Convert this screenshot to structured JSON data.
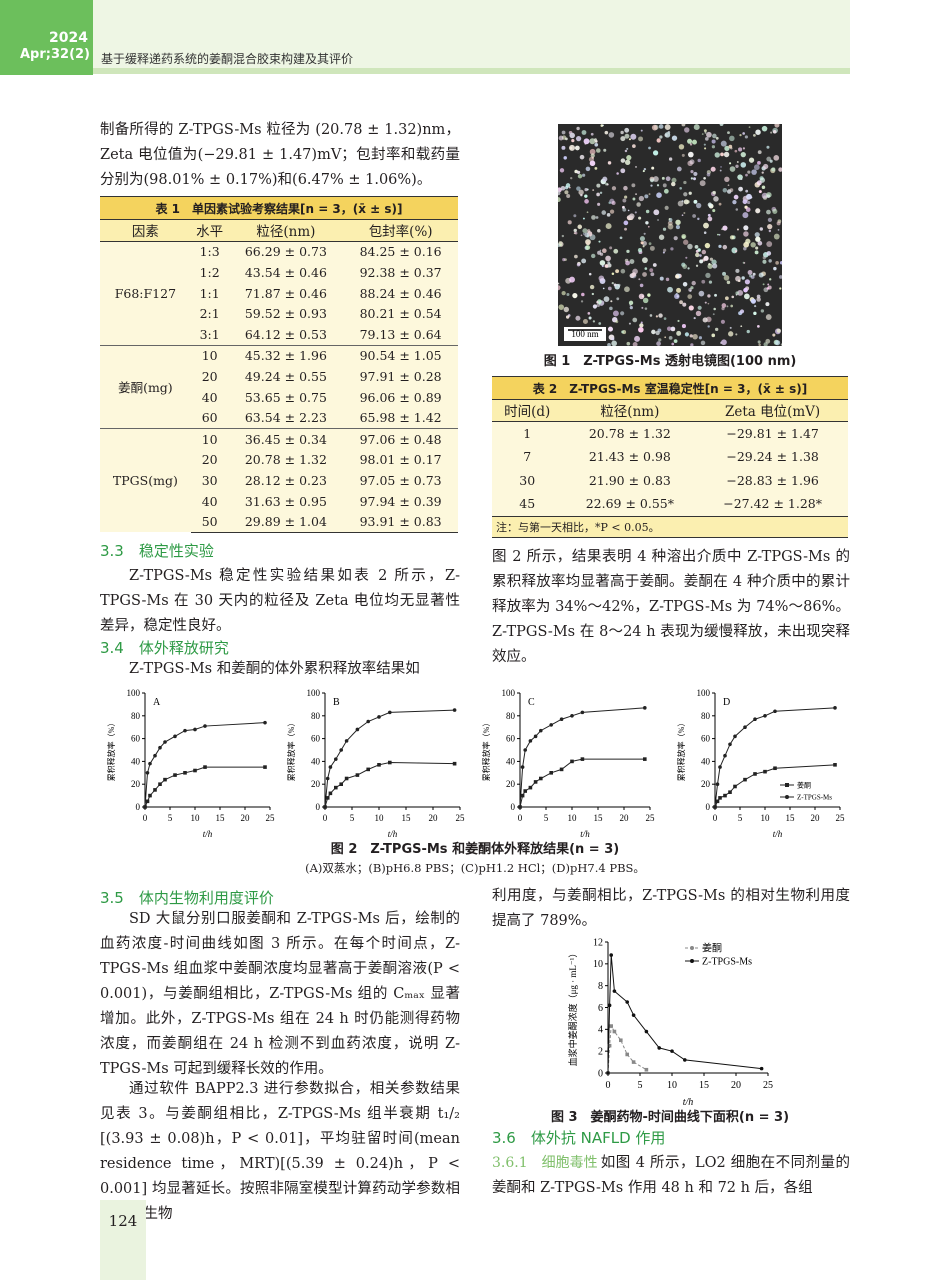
{
  "header": {
    "year": "2024",
    "issue": "Apr;32(2)",
    "running_title": "基于缓释递药系统的姜酮混合胶束构建及其评价"
  },
  "left_column": {
    "intro_paragraph": "制备所得的 Z-TPGS-Ms 粒径为 (20.78 ± 1.32)nm，Zeta 电位值为(−29.81 ± 1.47)mV；包封率和载药量分别为(98.01% ± 0.17%)和(6.47% ± 1.06%)。",
    "section_3_3": {
      "heading": "3.3　稳定性实验",
      "paragraph": "Z-TPGS-Ms 稳定性实验结果如表 2 所示，Z-TPGS-Ms 在 30 天内的粒径及 Zeta 电位均无显著性差异，稳定性良好。"
    },
    "section_3_4": {
      "heading": "3.4　体外释放研究",
      "paragraph": "Z-TPGS-Ms 和姜酮的体外累积释放率结果如"
    },
    "section_3_5": {
      "heading": "3.5　体内生物利用度评价",
      "paragraph_1": "SD 大鼠分别口服姜酮和 Z-TPGS-Ms 后，绘制的血药浓度-时间曲线如图 3 所示。在每个时间点，Z-TPGS-Ms 组血浆中姜酮浓度均显著高于姜酮溶液(P < 0.001)，与姜酮组相比，Z-TPGS-Ms 组的 Cₘₐₓ 显著增加。此外，Z-TPGS-Ms 组在 24 h 时仍能测得药物浓度，而姜酮组在 24 h 检测不到血药浓度，说明 Z-TPGS-Ms 可起到缓释长效的作用。",
      "paragraph_2": "通过软件 BAPP2.3 进行参数拟合，相关参数结果见表 3。与姜酮组相比，Z-TPGS-Ms 组半衰期 t₁/₂ [(3.93 ± 0.08)h，P < 0.01]，平均驻留时间(mean residence time，MRT)[(5.39 ± 0.24)h，P < 0.001] 均显著延长。按照非隔室模型计算药动学参数相对口服生物"
    }
  },
  "table_1": {
    "title": "表 1　单因素试验考察结果[n = 3，(x̄ ± s)]",
    "columns": [
      "因素",
      "水平",
      "粒径(nm)",
      "包封率(%)"
    ],
    "groups": [
      {
        "factor": "F68:F127",
        "rows": [
          [
            "1:3",
            "66.29 ± 0.73",
            "84.25 ± 0.16"
          ],
          [
            "1:2",
            "43.54 ± 0.46",
            "92.38 ± 0.37"
          ],
          [
            "1:1",
            "71.87 ± 0.46",
            "88.24 ± 0.46"
          ],
          [
            "2:1",
            "59.52 ± 0.93",
            "80.21 ± 0.54"
          ],
          [
            "3:1",
            "64.12 ± 0.53",
            "79.13 ± 0.64"
          ]
        ]
      },
      {
        "factor": "姜酮(mg)",
        "rows": [
          [
            "10",
            "45.32 ± 1.96",
            "90.54 ± 1.05"
          ],
          [
            "20",
            "49.24 ± 0.55",
            "97.91 ± 0.28"
          ],
          [
            "40",
            "53.65 ± 0.75",
            "96.06 ± 0.89"
          ],
          [
            "60",
            "63.54 ± 2.23",
            "65.98 ± 1.42"
          ]
        ]
      },
      {
        "factor": "TPGS(mg)",
        "rows": [
          [
            "10",
            "36.45 ± 0.34",
            "97.06 ± 0.48"
          ],
          [
            "20",
            "20.78 ± 1.32",
            "98.01 ± 0.17"
          ],
          [
            "30",
            "28.12 ± 0.23",
            "97.05 ± 0.73"
          ],
          [
            "40",
            "31.63 ± 0.95",
            "97.94 ± 0.39"
          ],
          [
            "50",
            "29.89 ± 1.04",
            "93.91 ± 0.83"
          ]
        ]
      }
    ]
  },
  "figure_1": {
    "scale_bar": "100 nm",
    "caption": "图 1　Z-TPGS-Ms 透射电镜图(100 nm)"
  },
  "table_2": {
    "title": "表 2　Z-TPGS-Ms 室温稳定性[n = 3，(x̄ ± s)]",
    "columns": [
      "时间(d)",
      "粒径(nm)",
      "Zeta 电位(mV)"
    ],
    "rows": [
      [
        "1",
        "20.78 ± 1.32",
        "−29.81 ± 1.47"
      ],
      [
        "7",
        "21.43 ± 0.98",
        "−29.24 ± 1.38"
      ],
      [
        "30",
        "21.90 ± 0.83",
        "−28.83 ± 1.96"
      ],
      [
        "45",
        "22.69 ± 0.55*",
        "−27.42 ± 1.28*"
      ]
    ],
    "note": "注：与第一天相比，*P < 0.05。"
  },
  "right_column": {
    "paragraph_continued": "图 2 所示，结果表明 4 种溶出介质中 Z-TPGS-Ms 的累积释放率均显著高于姜酮。姜酮在 4 种介质中的累计释放率为 34%～42%，Z-TPGS-Ms 为 74%～86%。Z-TPGS-Ms 在 8～24 h 表现为缓慢释放，未出现突释效应。",
    "paragraph_bioavailability": "利用度，与姜酮相比，Z-TPGS-Ms 的相对生物利用度提高了 789%。",
    "section_3_6": {
      "heading": "3.6　体外抗 NAFLD 作用",
      "subheading": "3.6.1　细胞毒性",
      "paragraph": "如图 4 所示，LO2 细胞在不同剂量的姜酮和 Z-TPGS-Ms 作用 48 h 和 72 h 后，各组"
    }
  },
  "figure_2": {
    "caption": "图 2　Z-TPGS-Ms 和姜酮体外释放结果(n = 3)",
    "subcaption": "(A)双蒸水；(B)pH6.8 PBS；(C)pH1.2 HCl；(D)pH7.4 PBS。",
    "x": [
      0,
      0.5,
      1,
      2,
      3,
      4,
      6,
      8,
      10,
      12,
      24
    ],
    "legend": [
      {
        "name": "姜酮",
        "marker": "square"
      },
      {
        "name": "Z-TPGS-Ms",
        "marker": "circle"
      }
    ],
    "legend_position": "lower right",
    "panels": [
      {
        "type": "line",
        "label": "A",
        "x_label": "t/h",
        "y_label": "累积释放率（%）",
        "xlim": [
          0,
          25
        ],
        "xticks": [
          0,
          5,
          10,
          15,
          20,
          25
        ],
        "ylim": [
          0,
          100
        ],
        "yticks": [
          0,
          20,
          40,
          60,
          80,
          100
        ],
        "series": [
          {
            "color": "#222222",
            "values": [
              0,
              5,
              10,
              15,
              20,
              24,
              28,
              30,
              32,
              35,
              35
            ]
          },
          {
            "color": "#222222",
            "values": [
              0,
              30,
              38,
              45,
              52,
              57,
              62,
              67,
              68,
              71,
              74
            ]
          }
        ]
      },
      {
        "type": "line",
        "label": "B",
        "x_label": "t/h",
        "y_label": "累积释放率（%）",
        "xlim": [
          0,
          25
        ],
        "xticks": [
          0,
          5,
          10,
          15,
          20,
          25
        ],
        "ylim": [
          0,
          100
        ],
        "yticks": [
          0,
          20,
          40,
          60,
          80,
          100
        ],
        "series": [
          {
            "color": "#222222",
            "values": [
              0,
              8,
              12,
              17,
              20,
              25,
              28,
              33,
              37,
              39,
              38
            ]
          },
          {
            "color": "#222222",
            "values": [
              0,
              25,
              35,
              42,
              50,
              58,
              68,
              75,
              79,
              83,
              85
            ]
          }
        ]
      },
      {
        "type": "line",
        "label": "C",
        "x_label": "t/h",
        "y_label": "累积释放率（%）",
        "xlim": [
          0,
          25
        ],
        "xticks": [
          0,
          5,
          10,
          15,
          20,
          25
        ],
        "ylim": [
          0,
          100
        ],
        "yticks": [
          0,
          20,
          40,
          60,
          80,
          100
        ],
        "series": [
          {
            "color": "#222222",
            "values": [
              0,
              10,
              14,
              17,
              22,
              25,
              30,
              33,
              40,
              42,
              42
            ]
          },
          {
            "color": "#222222",
            "values": [
              0,
              35,
              50,
              58,
              62,
              67,
              72,
              77,
              80,
              83,
              87
            ]
          }
        ]
      },
      {
        "type": "line",
        "label": "D",
        "x_label": "t/h",
        "y_label": "累积释放率（%）",
        "xlim": [
          0,
          25
        ],
        "xticks": [
          0,
          5,
          10,
          15,
          20,
          25
        ],
        "ylim": [
          0,
          100
        ],
        "yticks": [
          0,
          20,
          40,
          60,
          80,
          100
        ],
        "series": [
          {
            "color": "#222222",
            "values": [
              0,
              5,
              8,
              10,
              13,
              18,
              24,
              29,
              31,
              34,
              37
            ]
          },
          {
            "color": "#222222",
            "values": [
              0,
              20,
              35,
              45,
              55,
              62,
              70,
              77,
              80,
              84,
              87
            ]
          }
        ]
      }
    ]
  },
  "figure_3": {
    "type": "line",
    "caption": "图 3　姜酮药物-时间曲线下面积(n = 3)",
    "x_label": "t/h",
    "y_label": "血浆中姜酮浓度（μg · mL⁻¹）",
    "xlim": [
      0,
      25
    ],
    "xticks": [
      0,
      5,
      10,
      15,
      20,
      25
    ],
    "ylim": [
      0,
      12
    ],
    "yticks": [
      0,
      2,
      4,
      6,
      8,
      10,
      12
    ],
    "legend_position": "upper right",
    "series": [
      {
        "name": "姜酮",
        "color": "#888888",
        "dashed": true,
        "x": [
          0,
          0.25,
          0.5,
          1,
          2,
          3,
          4,
          6
        ],
        "values": [
          0,
          2.5,
          4.3,
          3.8,
          3,
          1.7,
          1,
          0.3
        ]
      },
      {
        "name": "Z-TPGS-Ms",
        "color": "#111111",
        "dashed": false,
        "x": [
          0,
          0.25,
          0.5,
          1,
          3,
          4,
          6,
          8,
          10,
          12,
          24
        ],
        "values": [
          0,
          6.2,
          10.8,
          7.5,
          6.5,
          5.3,
          3.8,
          2.3,
          2,
          1.2,
          0.4
        ]
      }
    ]
  },
  "page_number": "124"
}
